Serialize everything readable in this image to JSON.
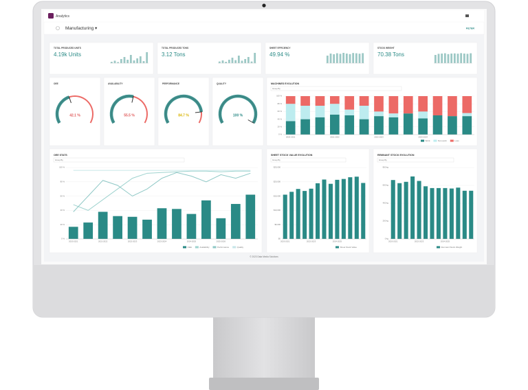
{
  "header": {
    "app": "Analytics",
    "page": "Manufacturing ▾",
    "filter": "FILTER"
  },
  "kpis": [
    {
      "label": "TOTAL PRODUCED UNITS",
      "value": "4.19k Units",
      "ylim": [
        0,
        100
      ],
      "bars": [
        10,
        18,
        8,
        30,
        45,
        25,
        60,
        20,
        35,
        50,
        15,
        80
      ]
    },
    {
      "label": "TOTAL PRODUCED TONS",
      "value": "3.12 Tons",
      "ylim": [
        0,
        100
      ],
      "bars": [
        12,
        20,
        10,
        25,
        40,
        22,
        55,
        18,
        30,
        45,
        12,
        75
      ]
    },
    {
      "label": "SHEET EFFICIENCY",
      "value": "49.94 %",
      "ylim": [
        0,
        100
      ],
      "bars": [
        55,
        70,
        65,
        72,
        68,
        75,
        70,
        66,
        74,
        72,
        69,
        73
      ]
    },
    {
      "label": "STOCK WEIGHT",
      "value": "70.38 Tons",
      "ylim": [
        0,
        100
      ],
      "bars": [
        60,
        68,
        70,
        72,
        66,
        70,
        71,
        69,
        73,
        70,
        68,
        72
      ]
    }
  ],
  "gauges": {
    "range": [
      0,
      100
    ],
    "items": [
      {
        "label": "OEE",
        "value": 42.1,
        "value_label": "42.1 %",
        "color": "#e05a5a"
      },
      {
        "label": "AVAILABILITY",
        "value": 55.5,
        "value_label": "55.5 %",
        "color": "#e05a5a"
      },
      {
        "label": "PERFORMANCE",
        "value": 84.7,
        "value_label": "84.7 %",
        "color": "#d9b300"
      },
      {
        "label": "QUALITY",
        "value": 100,
        "value_label": "100 %",
        "color": "#2a8a86"
      }
    ]
  },
  "machines": {
    "type": "bar",
    "stacked": true,
    "title": "MACHINES EVOLUTION",
    "group_by": "Group By",
    "categories": [
      "2020-2021",
      null,
      null,
      "2021-2022",
      null,
      null,
      "2022-2023",
      null,
      null,
      "2023-2024",
      null,
      null,
      null
    ],
    "series": [
      {
        "name": "Work",
        "color": "#2a8a86",
        "values": [
          35,
          40,
          45,
          52,
          50,
          40,
          48,
          45,
          55,
          42,
          50,
          48,
          48
        ]
      },
      {
        "name": "Non-work",
        "color": "#bdecef",
        "values": [
          45,
          35,
          30,
          28,
          15,
          35,
          12,
          10,
          0,
          18,
          0,
          0,
          8
        ]
      },
      {
        "name": "Loss",
        "color": "#ec6a66",
        "values": [
          20,
          25,
          25,
          20,
          35,
          25,
          40,
          45,
          45,
          40,
          50,
          52,
          44
        ]
      }
    ],
    "ylim": [
      0,
      100
    ],
    "yticks": [
      {
        "value": 0,
        "label": "0 %"
      },
      {
        "value": 20,
        "label": "20 %"
      },
      {
        "value": 40,
        "label": "40 %"
      },
      {
        "value": 60,
        "label": "60 %"
      },
      {
        "value": 80,
        "label": "80 %"
      },
      {
        "value": 100,
        "label": "100 %"
      }
    ]
  },
  "oee": {
    "type": "bar",
    "title": "OEE STATS",
    "group_by": "Group By",
    "categories": [
      "2020-2021",
      null,
      "2021-2022",
      null,
      "2022-2023",
      null,
      "2023-2024",
      null,
      "2024-2025",
      null,
      "2025-2026",
      null,
      null
    ],
    "series": [
      {
        "name": "OEE",
        "color": "#2a8a86",
        "values": [
          17,
          23,
          38,
          32,
          31,
          27,
          43,
          42,
          35,
          54,
          29,
          49,
          62
        ]
      },
      {
        "name": "Availability",
        "color": "#9fd3cf",
        "type": "line",
        "values": [
          48,
          40,
          55,
          70,
          85,
          92,
          93,
          94,
          95,
          95,
          94,
          95,
          95
        ]
      },
      {
        "name": "Performance",
        "color": "#8fc8c6",
        "type": "line",
        "values": [
          38,
          60,
          82,
          75,
          60,
          70,
          85,
          93,
          88,
          80,
          90,
          85,
          92
        ]
      },
      {
        "name": "Quality",
        "color": "#c6e6e8",
        "type": "line",
        "values": [
          96,
          96,
          96,
          96,
          96,
          96,
          96,
          96,
          96,
          96,
          96,
          96,
          96
        ]
      }
    ],
    "ylim": [
      0,
      100
    ],
    "yticks": [
      {
        "value": 0,
        "label": "0 %"
      },
      {
        "value": 20,
        "label": "20 %"
      },
      {
        "value": 40,
        "label": "40 %"
      },
      {
        "value": 60,
        "label": "60 %"
      },
      {
        "value": 80,
        "label": "80 %"
      },
      {
        "value": 100,
        "label": "100 %"
      }
    ]
  },
  "sheet_stock": {
    "type": "bar",
    "title": "SHEET STOCK VALUE EVOLUTION",
    "group_by": "Group By",
    "categories": [
      "2020-2021",
      null,
      null,
      null,
      "2022-2023",
      null,
      null,
      null,
      "2024-2025",
      null,
      null,
      null,
      null
    ],
    "series": [
      {
        "name": "Sheet Stock Value",
        "color": "#2a8a86",
        "values": [
          15500,
          16500,
          17500,
          16800,
          17600,
          19500,
          20800,
          19300,
          20700,
          21000,
          21600,
          21800,
          19600
        ]
      }
    ],
    "ylim": [
      0,
      25000
    ],
    "yticks": [
      {
        "value": 0,
        "label": "$0"
      },
      {
        "value": 5000,
        "label": "$5,000"
      },
      {
        "value": 10000,
        "label": "$10,000"
      },
      {
        "value": 15000,
        "label": "$15,000"
      },
      {
        "value": 20000,
        "label": "$20,000"
      },
      {
        "value": 25000,
        "label": "$25,000"
      }
    ]
  },
  "remnant": {
    "type": "bar",
    "title": "REMNANT STOCK EVOLUTION",
    "group_by": "Group By",
    "categories": [
      "2020-2021",
      null,
      null,
      null,
      "2022-2023",
      null,
      null,
      null,
      "2024-2025",
      null,
      null,
      null,
      null
    ],
    "series": [
      {
        "name": "Remnant Stock Weight",
        "color": "#2a8a86",
        "values": [
          660,
          625,
          640,
          700,
          650,
          590,
          570,
          570,
          570,
          565,
          575,
          540,
          540
        ]
      }
    ],
    "ylim": [
      0,
      800
    ],
    "yticks": [
      {
        "value": 0,
        "label": "0 kg"
      },
      {
        "value": 200,
        "label": "200 kg"
      },
      {
        "value": 400,
        "label": "400 kg"
      },
      {
        "value": 600,
        "label": "600 kg"
      },
      {
        "value": 800,
        "label": "800 kg"
      }
    ]
  },
  "footer": "© 2023 Data Media Solutions"
}
